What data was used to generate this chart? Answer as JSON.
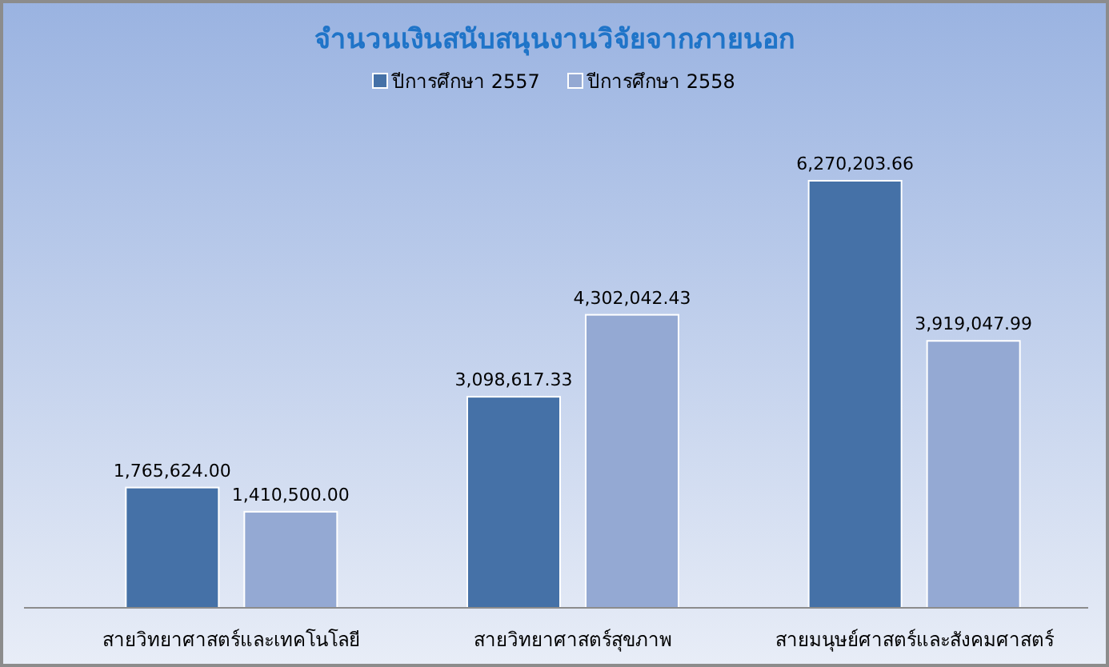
{
  "chart_data": {
    "type": "bar",
    "title": "จำนวนเงินสนับสนุนงานวิจัยจากภายนอก",
    "categories": [
      "สายวิทยาศาสตร์และเทคโนโลยี",
      "สายวิทยาศาสตร์สุขภาพ",
      "สายมนุษย์ศาสตร์และสังคมศาสตร์"
    ],
    "series": [
      {
        "name": "ปีการศึกษา 2557",
        "color": "#4571a7",
        "values": [
          1765624.0,
          3098617.33,
          6270203.66
        ],
        "value_labels": [
          "1,765,624.00",
          "3,098,617.33",
          "6,270,203.66"
        ]
      },
      {
        "name": "ปีการศึกษา 2558",
        "color": "#94a9d3",
        "values": [
          1410500.0,
          4302042.43,
          3919047.99
        ],
        "value_labels": [
          "1,410,500.00",
          "4,302,042.43",
          "3,919,047.99"
        ]
      }
    ],
    "legend": "top"
  }
}
